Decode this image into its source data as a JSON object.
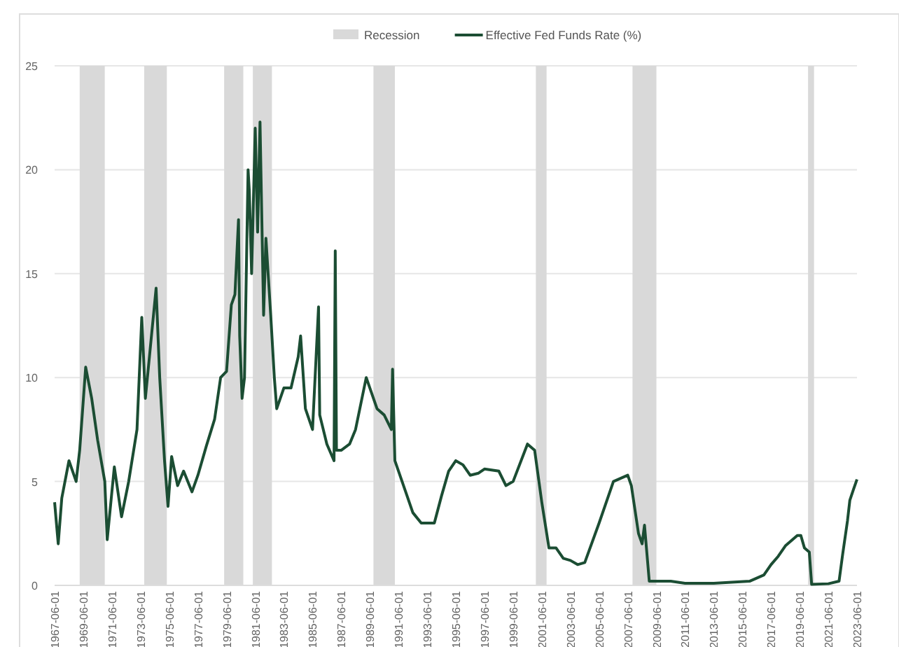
{
  "chart_data": {
    "type": "line",
    "legend": "top",
    "grid": "y",
    "ylim": [
      0,
      25
    ],
    "yticks": [
      0,
      5,
      10,
      15,
      20,
      25
    ],
    "xlim": [
      "1967-06-01",
      "2023-06-01"
    ],
    "xticks": [
      "1967-06-01",
      "1969-06-01",
      "1971-06-01",
      "1973-06-01",
      "1975-06-01",
      "1977-06-01",
      "1979-06-01",
      "1981-06-01",
      "1983-06-01",
      "1985-06-01",
      "1987-06-01",
      "1989-06-01",
      "1991-06-01",
      "1993-06-01",
      "1995-06-01",
      "1997-06-01",
      "1999-06-01",
      "2001-06-01",
      "2003-06-01",
      "2005-06-01",
      "2007-06-01",
      "2009-06-01",
      "2011-06-01",
      "2013-06-01",
      "2015-06-01",
      "2017-06-01",
      "2019-06-01",
      "2021-06-01",
      "2023-06-01"
    ],
    "bands": [
      {
        "axis": "x",
        "from": "1969-03",
        "to": "1970-12",
        "label": "Recession",
        "color": "#d9d9d9"
      },
      {
        "axis": "x",
        "from": "1973-09",
        "to": "1975-04",
        "color": "#d9d9d9"
      },
      {
        "axis": "x",
        "from": "1979-04",
        "to": "1980-08",
        "color": "#d9d9d9"
      },
      {
        "axis": "x",
        "from": "1981-04",
        "to": "1982-08",
        "color": "#d9d9d9"
      },
      {
        "axis": "x",
        "from": "1989-09",
        "to": "1991-03",
        "color": "#d9d9d9"
      },
      {
        "axis": "x",
        "from": "2001-01",
        "to": "2001-10",
        "color": "#d9d9d9"
      },
      {
        "axis": "x",
        "from": "2007-10",
        "to": "2009-06",
        "color": "#d9d9d9"
      },
      {
        "axis": "x",
        "from": "2020-01",
        "to": "2020-06",
        "color": "#d9d9d9"
      }
    ],
    "series": [
      {
        "name": "Effective Fed Funds Rate (%)",
        "color": "#1b4d33",
        "x": [
          "1967-06",
          "1967-09",
          "1967-12",
          "1968-06",
          "1968-12",
          "1969-03",
          "1969-08",
          "1970-01",
          "1970-06",
          "1970-12",
          "1971-02",
          "1971-08",
          "1972-02",
          "1972-08",
          "1973-03",
          "1973-07",
          "1973-10",
          "1974-07",
          "1974-10",
          "1975-02",
          "1975-05",
          "1975-08",
          "1976-01",
          "1976-06",
          "1977-01",
          "1977-06",
          "1978-01",
          "1978-08",
          "1979-01",
          "1979-06",
          "1979-10",
          "1980-01",
          "1980-04",
          "1980-05",
          "1980-07",
          "1980-09",
          "1980-12",
          "1981-01",
          "1981-03",
          "1981-06",
          "1981-08",
          "1981-10",
          "1982-01",
          "1982-03",
          "1982-07",
          "1982-10",
          "1982-12",
          "1983-06",
          "1983-12",
          "1984-06",
          "1984-08",
          "1984-12",
          "1985-06",
          "1985-11",
          "1985-12",
          "1986-06",
          "1986-12",
          "1987-01",
          "1987-02",
          "1987-06",
          "1988-01",
          "1988-06",
          "1989-03",
          "1989-06",
          "1989-12",
          "1990-06",
          "1990-12",
          "1991-01",
          "1991-03",
          "1991-12",
          "1992-06",
          "1993-01",
          "1993-12",
          "1994-06",
          "1994-12",
          "1995-06",
          "1995-12",
          "1996-06",
          "1997-01",
          "1997-06",
          "1998-06",
          "1998-12",
          "1999-06",
          "2000-06",
          "2000-12",
          "2001-06",
          "2001-12",
          "2002-06",
          "2002-12",
          "2003-06",
          "2003-12",
          "2004-06",
          "2005-06",
          "2006-06",
          "2007-06",
          "2007-09",
          "2008-03",
          "2008-06",
          "2008-08",
          "2008-12",
          "2010-06",
          "2011-06",
          "2013-06",
          "2015-12",
          "2016-12",
          "2017-06",
          "2017-12",
          "2018-06",
          "2019-04",
          "2019-07",
          "2019-10",
          "2020-02",
          "2020-04",
          "2021-06",
          "2022-03",
          "2022-06",
          "2022-10",
          "2022-12",
          "2023-03",
          "2023-06"
        ],
        "values": [
          4.0,
          2.0,
          4.2,
          6.0,
          5.0,
          6.5,
          10.5,
          9.0,
          7.0,
          5.0,
          2.2,
          5.7,
          3.3,
          5.0,
          7.5,
          12.9,
          9.0,
          14.3,
          10.0,
          6.0,
          3.8,
          6.2,
          4.8,
          5.5,
          4.5,
          5.3,
          6.7,
          8.0,
          10.0,
          10.3,
          13.5,
          14.0,
          17.6,
          12.0,
          9.0,
          10.0,
          20.0,
          19.0,
          15.0,
          22.0,
          17.0,
          22.3,
          13.0,
          16.7,
          13.0,
          10.0,
          8.5,
          9.5,
          9.5,
          11.0,
          12.0,
          8.5,
          7.5,
          13.4,
          8.2,
          6.8,
          6.0,
          16.1,
          6.5,
          6.5,
          6.8,
          7.5,
          10.0,
          9.5,
          8.5,
          8.2,
          7.5,
          10.4,
          6.0,
          4.5,
          3.5,
          3.0,
          3.0,
          4.3,
          5.5,
          6.0,
          5.8,
          5.3,
          5.4,
          5.6,
          5.5,
          4.8,
          5.0,
          6.8,
          6.5,
          4.0,
          1.8,
          1.8,
          1.3,
          1.2,
          1.0,
          1.1,
          3.0,
          5.0,
          5.3,
          4.8,
          2.5,
          2.0,
          2.9,
          0.2,
          0.2,
          0.1,
          0.1,
          0.2,
          0.5,
          1.0,
          1.4,
          1.9,
          2.4,
          2.4,
          1.8,
          1.6,
          0.05,
          0.08,
          0.2,
          1.5,
          3.1,
          4.1,
          4.6,
          5.1
        ]
      }
    ]
  }
}
